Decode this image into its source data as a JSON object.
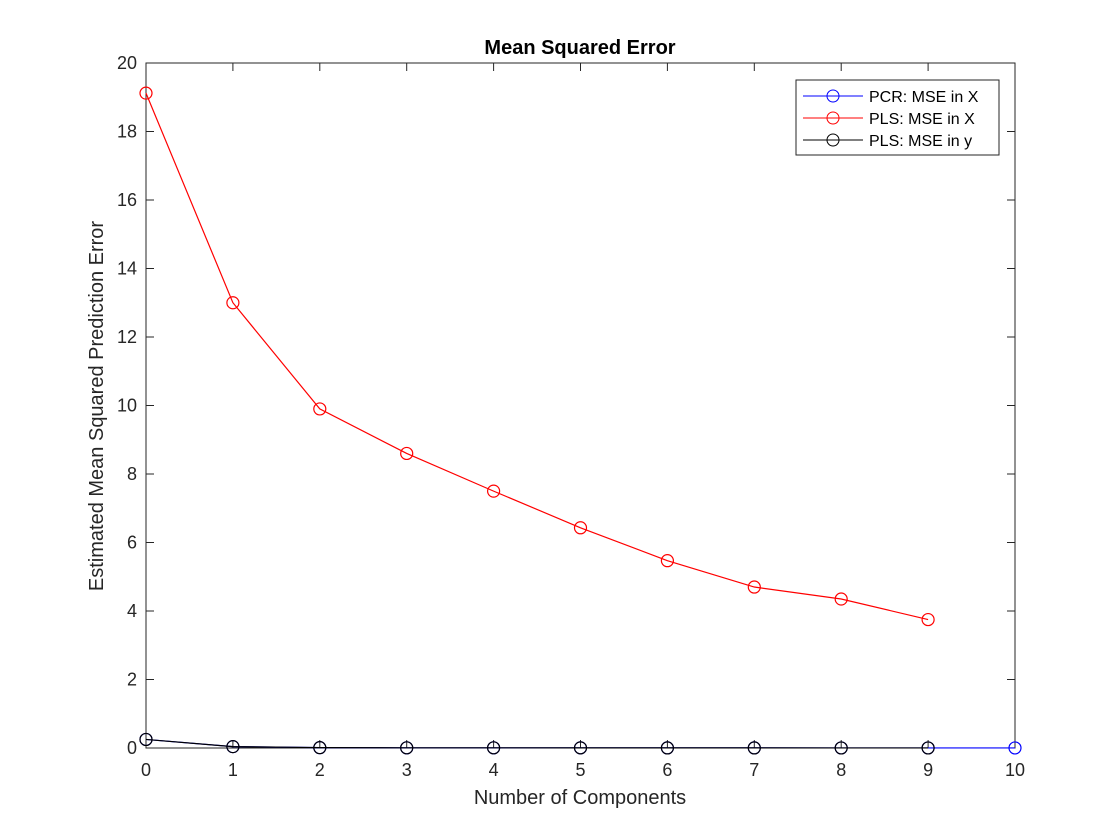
{
  "chart_data": {
    "type": "line",
    "title": "Mean Squared Error",
    "xlabel": "Number of Components",
    "ylabel": "Estimated Mean Squared Prediction Error",
    "xlim": [
      0,
      10
    ],
    "ylim": [
      0,
      20
    ],
    "xticks": [
      "0",
      "1",
      "2",
      "3",
      "4",
      "5",
      "6",
      "7",
      "8",
      "9",
      "10"
    ],
    "yticks": [
      "0",
      "2",
      "4",
      "6",
      "8",
      "10",
      "12",
      "14",
      "16",
      "18",
      "20"
    ],
    "grid": false,
    "legend_position": "top-right",
    "marker": "circle",
    "series": [
      {
        "name": "PCR: MSE in X",
        "color": "#0000ff",
        "x": [
          0,
          1,
          2,
          3,
          4,
          5,
          6,
          7,
          8,
          9,
          10
        ],
        "values": [
          0.25,
          0.04,
          0.01,
          0.005,
          0.005,
          0.004,
          0.003,
          0.003,
          0.002,
          0.002,
          0.002
        ]
      },
      {
        "name": "PLS: MSE in X",
        "color": "#ff0000",
        "x": [
          0,
          1,
          2,
          3,
          4,
          5,
          6,
          7,
          8,
          9
        ],
        "values": [
          19.12,
          13.0,
          9.9,
          8.6,
          7.5,
          6.43,
          5.47,
          4.7,
          4.35,
          3.75
        ]
      },
      {
        "name": "PLS: MSE in y",
        "color": "#000000",
        "x": [
          0,
          1,
          2,
          3,
          4,
          5,
          6,
          7,
          8,
          9
        ],
        "values": [
          0.25,
          0.04,
          0.01,
          0.005,
          0.005,
          0.004,
          0.003,
          0.003,
          0.002,
          0.002
        ]
      }
    ]
  }
}
